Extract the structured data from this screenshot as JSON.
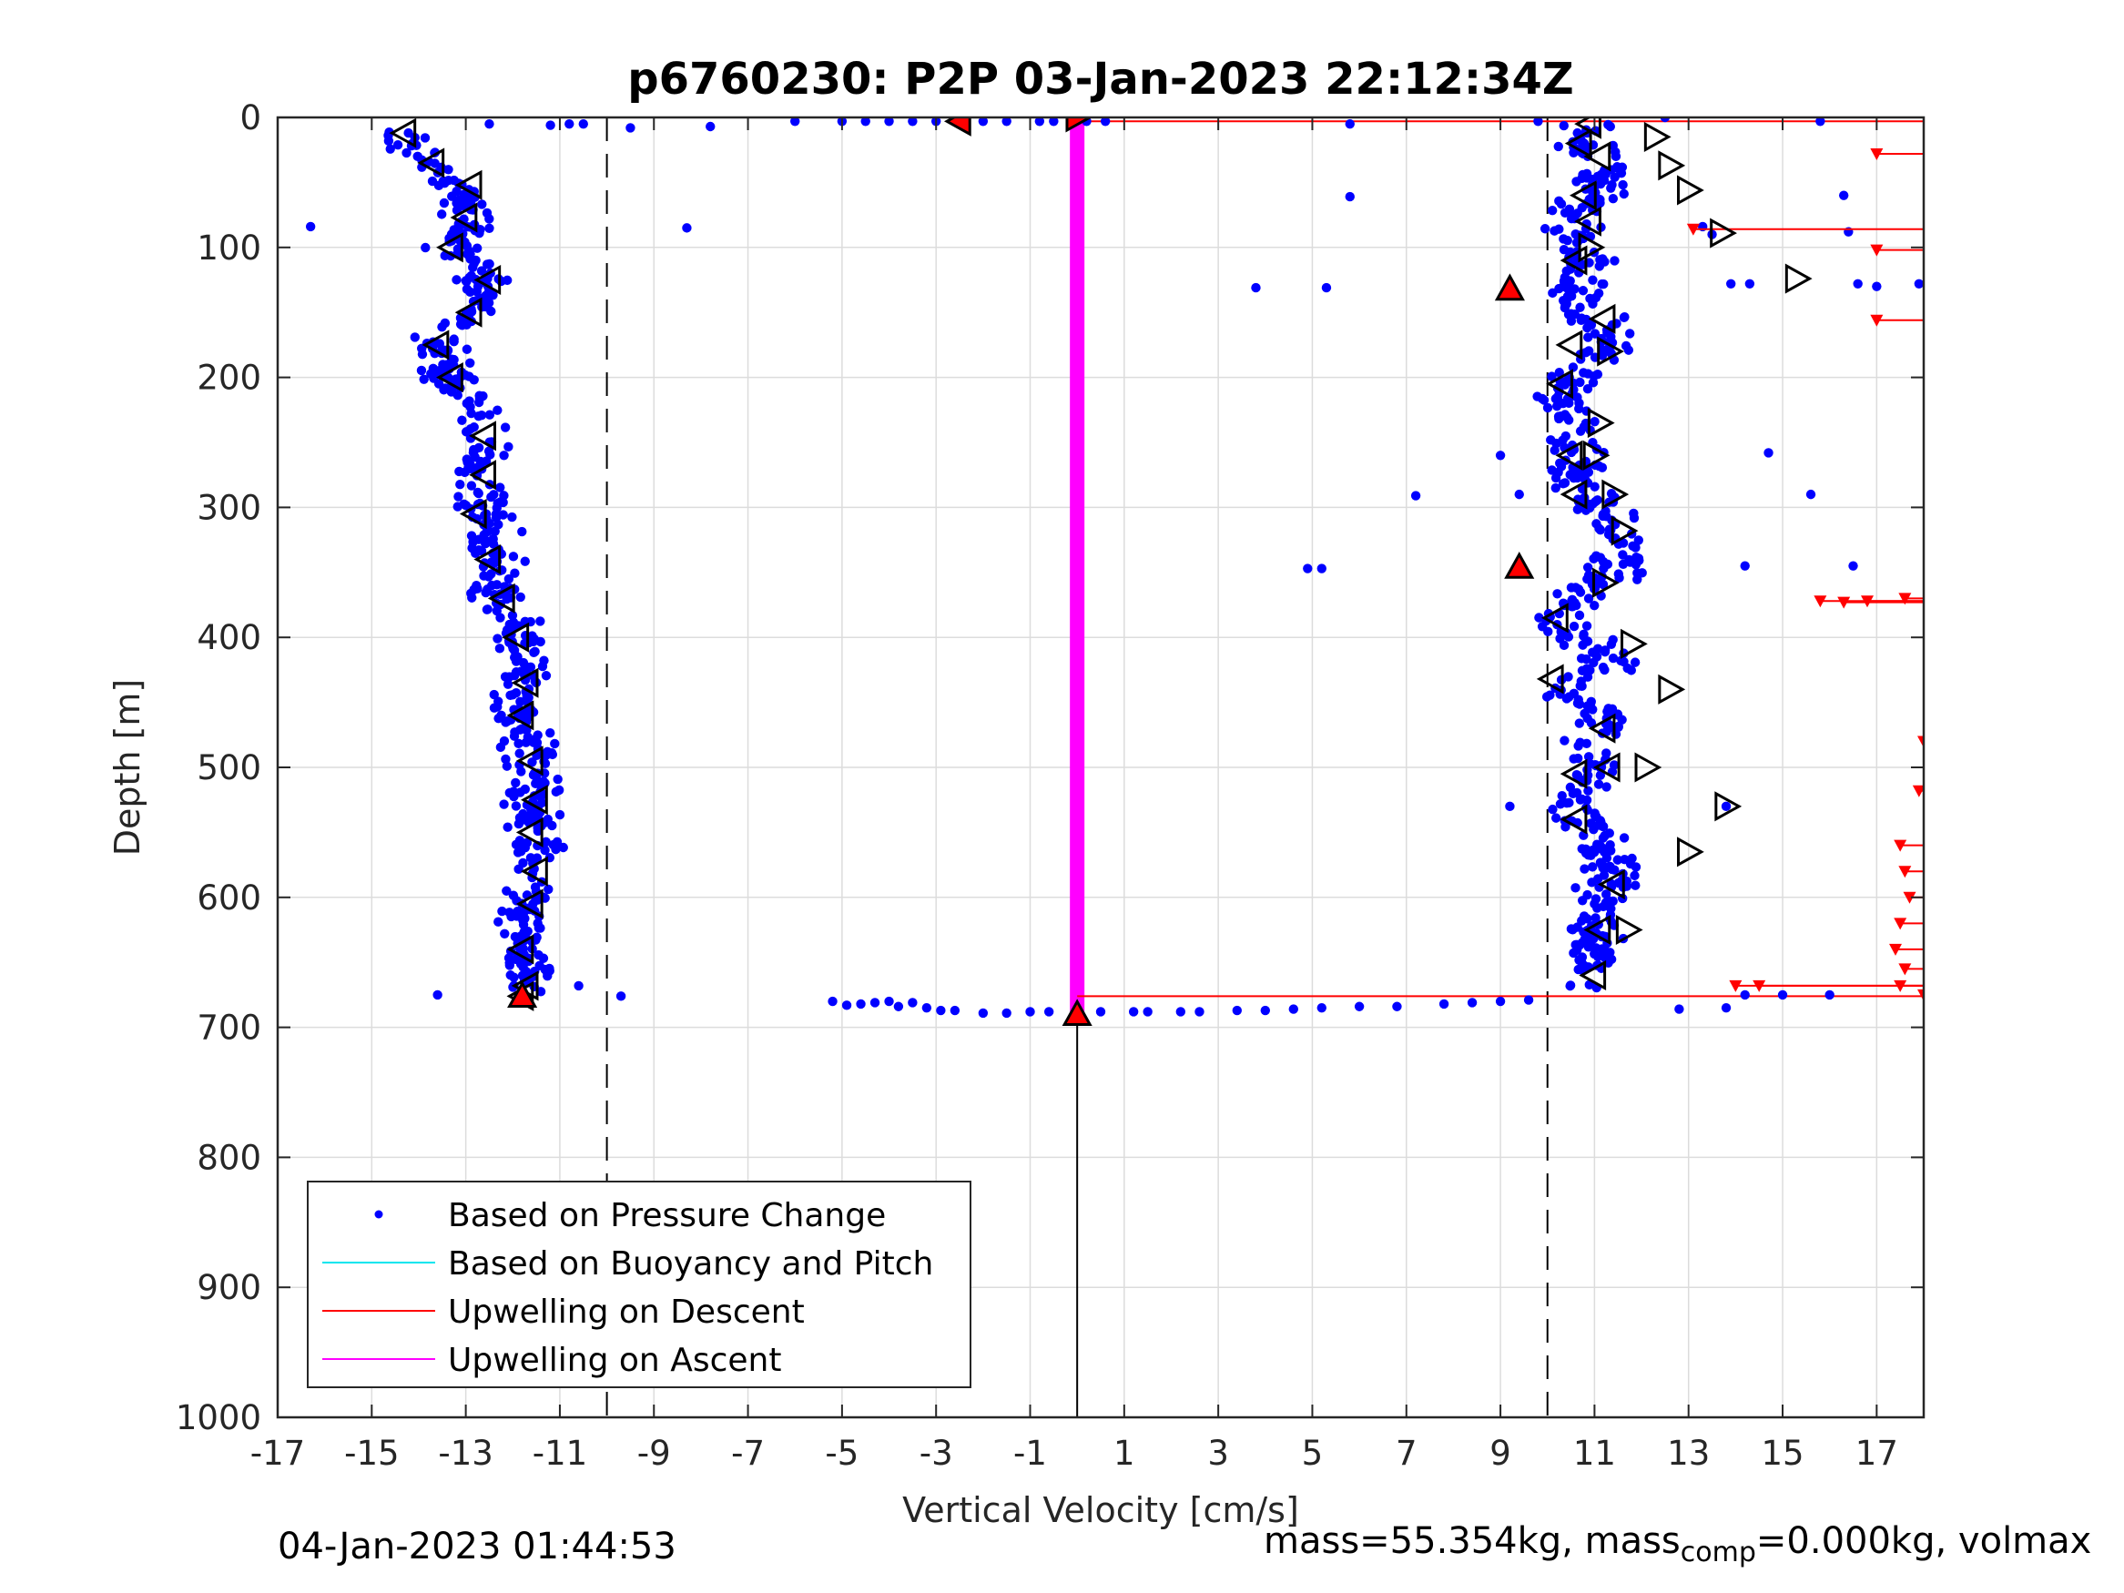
{
  "chart_data": {
    "type": "scatter",
    "title": "p6760230: P2P 03-Jan-2023 22:12:34Z",
    "xlabel": "Vertical Velocity [cm/s]",
    "ylabel": "Depth [m]",
    "xlim": [
      -17,
      18
    ],
    "ylim": [
      0,
      1000
    ],
    "y_reversed": true,
    "grid": true,
    "xticks": [
      -17,
      -15,
      -13,
      -11,
      -9,
      -7,
      -5,
      -3,
      -1,
      1,
      3,
      5,
      7,
      9,
      11,
      13,
      15,
      17
    ],
    "yticks": [
      0,
      100,
      200,
      300,
      400,
      500,
      600,
      700,
      800,
      900,
      1000
    ],
    "legend_position": "bottom-left",
    "legend": [
      {
        "label": "Based on Pressure Change",
        "color": "#0000ff",
        "style": "dot"
      },
      {
        "label": "Based on Buoyancy and Pitch",
        "color": "#00e5ee",
        "style": "line"
      },
      {
        "label": "Upwelling on Descent",
        "color": "#ff0000",
        "style": "line"
      },
      {
        "label": "Upwelling on Ascent",
        "color": "#ff00ff",
        "style": "line"
      }
    ],
    "reference_lines": [
      {
        "x": -10,
        "style": "dashed",
        "color": "#000000"
      },
      {
        "x": 10,
        "style": "dashed",
        "color": "#000000"
      },
      {
        "x": 0,
        "from_depth": 688,
        "to_depth": 1000,
        "style": "solid",
        "color": "#000000"
      }
    ],
    "upwelling_ascent_band": {
      "x": 0,
      "depth_range": [
        2,
        688
      ],
      "color": "#ff00ff"
    },
    "upwelling_descent_lines": [
      {
        "depth": 3,
        "x_from": 0,
        "x_to": 18
      },
      {
        "depth": 676,
        "x_from": 0,
        "x_to": 18
      }
    ],
    "descent_trace": [
      [
        -14.4,
        10
      ],
      [
        -14.2,
        20
      ],
      [
        -13.9,
        30
      ],
      [
        -13.6,
        40
      ],
      [
        -13.3,
        50
      ],
      [
        -13.1,
        60
      ],
      [
        -12.9,
        70
      ],
      [
        -13.0,
        85
      ],
      [
        -13.3,
        100
      ],
      [
        -12.7,
        115
      ],
      [
        -12.6,
        130
      ],
      [
        -13.0,
        150
      ],
      [
        -13.6,
        175
      ],
      [
        -13.4,
        200
      ],
      [
        -12.8,
        220
      ],
      [
        -12.6,
        245
      ],
      [
        -12.8,
        275
      ],
      [
        -12.6,
        300
      ],
      [
        -12.4,
        330
      ],
      [
        -12.3,
        360
      ],
      [
        -12.0,
        390
      ],
      [
        -11.8,
        420
      ],
      [
        -11.9,
        450
      ],
      [
        -11.7,
        480
      ],
      [
        -11.5,
        510
      ],
      [
        -11.6,
        540
      ],
      [
        -11.5,
        570
      ],
      [
        -11.6,
        600
      ],
      [
        -11.8,
        630
      ],
      [
        -11.7,
        660
      ],
      [
        -11.8,
        676
      ]
    ],
    "ascent_trace": [
      [
        10.9,
        5
      ],
      [
        10.8,
        20
      ],
      [
        11.2,
        40
      ],
      [
        10.9,
        60
      ],
      [
        10.6,
        80
      ],
      [
        10.7,
        100
      ],
      [
        10.8,
        120
      ],
      [
        10.6,
        140
      ],
      [
        11.1,
        160
      ],
      [
        11.0,
        185
      ],
      [
        10.4,
        210
      ],
      [
        10.4,
        235
      ],
      [
        10.6,
        260
      ],
      [
        10.6,
        285
      ],
      [
        11.4,
        310
      ],
      [
        11.7,
        330
      ],
      [
        11.1,
        355
      ],
      [
        10.2,
        380
      ],
      [
        10.6,
        400
      ],
      [
        11.4,
        420
      ],
      [
        10.2,
        440
      ],
      [
        11.3,
        460
      ],
      [
        11.0,
        480
      ],
      [
        11.0,
        500
      ],
      [
        10.6,
        520
      ],
      [
        10.7,
        540
      ],
      [
        11.3,
        560
      ],
      [
        11.4,
        580
      ],
      [
        11.2,
        600
      ],
      [
        11.0,
        625
      ],
      [
        10.9,
        650
      ],
      [
        10.8,
        670
      ]
    ],
    "near_surface_points": [
      [
        -12.5,
        5
      ],
      [
        -11.2,
        6
      ],
      [
        -10.8,
        5
      ],
      [
        -10.5,
        5
      ],
      [
        -9.5,
        8
      ],
      [
        -7.8,
        7
      ],
      [
        -6.0,
        3
      ],
      [
        -5.0,
        3
      ],
      [
        -4.5,
        3
      ],
      [
        -4.0,
        3
      ],
      [
        -3.5,
        3
      ],
      [
        -3.0,
        3
      ],
      [
        -2.0,
        3
      ],
      [
        -1.5,
        3
      ],
      [
        -0.8,
        3
      ],
      [
        -0.5,
        3
      ],
      [
        0.2,
        3
      ],
      [
        0.6,
        3
      ],
      [
        5.8,
        5
      ],
      [
        9.8,
        3
      ],
      [
        12.5,
        0
      ],
      [
        15.8,
        3
      ]
    ],
    "near_bottom_points": [
      [
        -13.6,
        675
      ],
      [
        -10.6,
        668
      ],
      [
        -9.7,
        676
      ],
      [
        -5.2,
        680
      ],
      [
        -4.9,
        683
      ],
      [
        -4.6,
        682
      ],
      [
        -4.3,
        681
      ],
      [
        -4.0,
        680
      ],
      [
        -3.8,
        684
      ],
      [
        -3.5,
        681
      ],
      [
        -3.2,
        685
      ],
      [
        -2.9,
        687
      ],
      [
        -2.6,
        687
      ],
      [
        -2.0,
        689
      ],
      [
        -1.5,
        689
      ],
      [
        -1.0,
        688
      ],
      [
        -0.6,
        688
      ],
      [
        0.5,
        688
      ],
      [
        1.2,
        688
      ],
      [
        1.5,
        688
      ],
      [
        2.2,
        688
      ],
      [
        2.6,
        688
      ],
      [
        3.4,
        687
      ],
      [
        4.0,
        687
      ],
      [
        4.6,
        686
      ],
      [
        5.2,
        685
      ],
      [
        6.0,
        684
      ],
      [
        6.8,
        684
      ],
      [
        7.8,
        682
      ],
      [
        8.4,
        681
      ],
      [
        9.0,
        680
      ],
      [
        9.6,
        679
      ]
    ],
    "outlier_points": [
      [
        -16.3,
        84
      ],
      [
        -8.3,
        85
      ],
      [
        3.8,
        131
      ],
      [
        5.3,
        131
      ],
      [
        5.8,
        61
      ],
      [
        7.2,
        291
      ],
      [
        4.9,
        347
      ],
      [
        5.2,
        347
      ],
      [
        9.0,
        260
      ],
      [
        9.4,
        290
      ],
      [
        13.3,
        84
      ],
      [
        13.5,
        90
      ],
      [
        13.9,
        128
      ],
      [
        14.3,
        128
      ],
      [
        14.7,
        258
      ],
      [
        15.6,
        290
      ],
      [
        16.3,
        60
      ],
      [
        16.4,
        88
      ],
      [
        16.6,
        128
      ],
      [
        17.0,
        130
      ],
      [
        17.9,
        128
      ],
      [
        14.2,
        345
      ],
      [
        16.5,
        345
      ],
      [
        14.2,
        675
      ],
      [
        15.0,
        675
      ],
      [
        16.0,
        675
      ],
      [
        13.8,
        685
      ],
      [
        12.8,
        686
      ],
      [
        9.2,
        530
      ],
      [
        13.8,
        530
      ]
    ],
    "red_markers_descent_lines": [
      [
        17.0,
        28
      ],
      [
        13.1,
        86
      ],
      [
        17.0,
        102
      ],
      [
        17.0,
        156
      ],
      [
        15.8,
        372
      ],
      [
        16.3,
        373
      ],
      [
        16.8,
        372
      ],
      [
        17.6,
        370
      ],
      [
        18.0,
        480
      ],
      [
        17.9,
        518
      ],
      [
        17.5,
        560
      ],
      [
        17.6,
        580
      ],
      [
        17.7,
        600
      ],
      [
        17.5,
        620
      ],
      [
        17.4,
        640
      ],
      [
        17.6,
        655
      ],
      [
        17.5,
        668
      ],
      [
        14.0,
        668
      ],
      [
        14.5,
        668
      ],
      [
        18.0,
        675
      ]
    ],
    "descent_triangles": [
      [
        -14.3,
        12
      ],
      [
        -13.7,
        35
      ],
      [
        -12.9,
        52
      ],
      [
        -13.0,
        77
      ],
      [
        -13.3,
        100
      ],
      [
        -12.5,
        125
      ],
      [
        -12.9,
        150
      ],
      [
        -13.6,
        175
      ],
      [
        -13.3,
        200
      ],
      [
        -12.6,
        245
      ],
      [
        -12.6,
        275
      ],
      [
        -12.8,
        305
      ],
      [
        -12.5,
        340
      ],
      [
        -12.2,
        370
      ],
      [
        -11.9,
        400
      ],
      [
        -11.7,
        435
      ],
      [
        -11.8,
        460
      ],
      [
        -11.6,
        495
      ],
      [
        -11.5,
        525
      ],
      [
        -11.6,
        550
      ],
      [
        -11.5,
        580
      ],
      [
        -11.6,
        605
      ],
      [
        -11.8,
        640
      ],
      [
        -11.7,
        668
      ],
      [
        -11.8,
        676
      ]
    ],
    "ascent_triangles_left": [
      [
        10.9,
        5
      ],
      [
        10.7,
        20
      ],
      [
        11.1,
        30
      ],
      [
        10.8,
        60
      ],
      [
        10.9,
        80
      ],
      [
        10.6,
        110
      ],
      [
        11.2,
        155
      ],
      [
        10.5,
        175
      ],
      [
        10.3,
        205
      ],
      [
        10.5,
        260
      ],
      [
        10.6,
        290
      ],
      [
        10.2,
        385
      ],
      [
        10.1,
        432
      ],
      [
        10.6,
        505
      ],
      [
        10.6,
        540
      ],
      [
        11.1,
        625
      ],
      [
        11.0,
        660
      ],
      [
        11.2,
        470
      ],
      [
        11.3,
        500
      ],
      [
        11.4,
        590
      ]
    ],
    "ascent_triangles_right": [
      [
        12.3,
        15
      ],
      [
        12.6,
        37
      ],
      [
        13.0,
        56
      ],
      [
        13.7,
        89
      ],
      [
        15.3,
        124
      ],
      [
        11.6,
        318
      ],
      [
        11.2,
        358
      ],
      [
        11.8,
        405
      ],
      [
        12.6,
        440
      ],
      [
        13.8,
        530
      ],
      [
        13.0,
        565
      ],
      [
        11.7,
        625
      ],
      [
        10.9,
        100
      ],
      [
        11.1,
        235
      ],
      [
        11.0,
        260
      ],
      [
        11.4,
        290
      ],
      [
        12.1,
        500
      ],
      [
        11.3,
        180
      ]
    ],
    "red_filled_triangles": [
      [
        -2.5,
        3
      ],
      [
        0,
        0
      ],
      [
        9.2,
        132
      ],
      [
        9.4,
        346
      ],
      [
        -11.8,
        676
      ],
      [
        0,
        690
      ]
    ],
    "scatter_density_noise": {
      "descent_spread_cm_s": 0.45,
      "ascent_spread_cm_s": 0.55,
      "points_per_side": 620
    }
  },
  "footer": {
    "timestamp": "04-Jan-2023 01:44:53",
    "mass_text": "mass=55.354kg, mass",
    "mass_sub": "comp",
    "mass_rest": "=0.000kg, volmax"
  }
}
